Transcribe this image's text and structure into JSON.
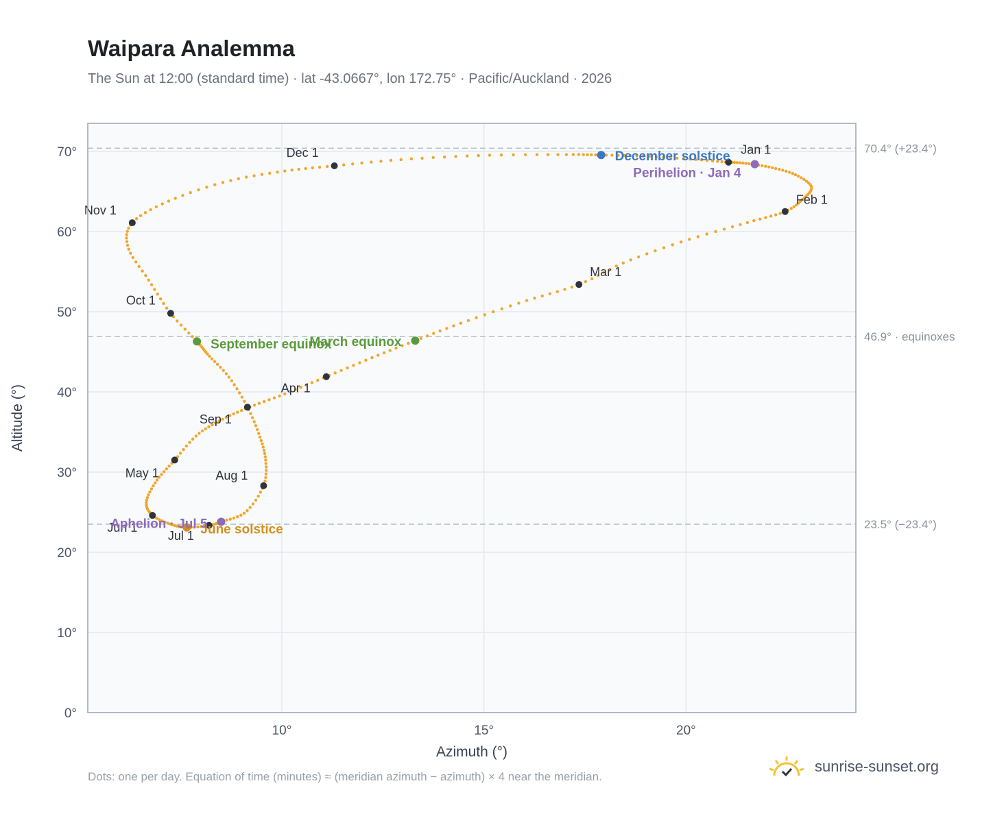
{
  "header": {
    "title": "Waipara Analemma",
    "subtitle": "The Sun at 12:00 (standard time) · lat -43.0667°, lon 172.75° · Pacific/Auckland · 2026"
  },
  "chart_data": {
    "type": "scatter",
    "title": "Waipara Analemma",
    "xlabel": "Azimuth (°)",
    "ylabel": "Altitude (°)",
    "xlim": [
      5.2,
      24.2
    ],
    "ylim": [
      0,
      73.5
    ],
    "x_ticks": [
      {
        "value": 10,
        "label": "10°"
      },
      {
        "value": 15,
        "label": "15°"
      },
      {
        "value": 20,
        "label": "20°"
      }
    ],
    "y_ticks": [
      {
        "value": 0,
        "label": "0°"
      },
      {
        "value": 10,
        "label": "10°"
      },
      {
        "value": 20,
        "label": "20°"
      },
      {
        "value": 30,
        "label": "30°"
      },
      {
        "value": 40,
        "label": "40°"
      },
      {
        "value": 50,
        "label": "50°"
      },
      {
        "value": 60,
        "label": "60°"
      },
      {
        "value": 70,
        "label": "70°"
      }
    ],
    "grid": true,
    "reference_lines": [
      {
        "y": 70.4,
        "label": "70.4° (+23.4°)"
      },
      {
        "y": 46.9,
        "label": "46.9° · equinoxes"
      },
      {
        "y": 23.5,
        "label": "23.5° (−23.4°)"
      }
    ],
    "path_points": [
      {
        "x": 21.05,
        "y": 68.65
      },
      {
        "x": 21.5,
        "y": 68.5
      },
      {
        "x": 22.1,
        "y": 68.0
      },
      {
        "x": 22.7,
        "y": 67.1
      },
      {
        "x": 23.1,
        "y": 65.6
      },
      {
        "x": 22.9,
        "y": 64.1
      },
      {
        "x": 22.45,
        "y": 62.5
      },
      {
        "x": 21.5,
        "y": 61.1
      },
      {
        "x": 20.0,
        "y": 58.9
      },
      {
        "x": 18.5,
        "y": 56.2
      },
      {
        "x": 17.35,
        "y": 53.4
      },
      {
        "x": 16.0,
        "y": 51.3
      },
      {
        "x": 14.5,
        "y": 48.7
      },
      {
        "x": 13.3,
        "y": 46.4
      },
      {
        "x": 12.2,
        "y": 44.2
      },
      {
        "x": 11.1,
        "y": 41.9
      },
      {
        "x": 10.1,
        "y": 39.8
      },
      {
        "x": 9.2,
        "y": 38.1
      },
      {
        "x": 8.5,
        "y": 36.5
      },
      {
        "x": 7.9,
        "y": 34.6
      },
      {
        "x": 7.35,
        "y": 31.5
      },
      {
        "x": 6.9,
        "y": 28.9
      },
      {
        "x": 6.65,
        "y": 26.3
      },
      {
        "x": 6.8,
        "y": 24.6
      },
      {
        "x": 7.25,
        "y": 23.5
      },
      {
        "x": 7.65,
        "y": 23.1
      },
      {
        "x": 8.2,
        "y": 23.35
      },
      {
        "x": 8.5,
        "y": 23.8
      },
      {
        "x": 9.1,
        "y": 25.0
      },
      {
        "x": 9.55,
        "y": 28.3
      },
      {
        "x": 9.6,
        "y": 31.5
      },
      {
        "x": 9.45,
        "y": 34.5
      },
      {
        "x": 9.15,
        "y": 38.1
      },
      {
        "x": 8.7,
        "y": 41.8
      },
      {
        "x": 8.2,
        "y": 44.5
      },
      {
        "x": 7.9,
        "y": 46.3
      },
      {
        "x": 7.25,
        "y": 49.8
      },
      {
        "x": 6.7,
        "y": 54.0
      },
      {
        "x": 6.2,
        "y": 58.0
      },
      {
        "x": 6.3,
        "y": 61.1
      },
      {
        "x": 7.2,
        "y": 63.8
      },
      {
        "x": 8.6,
        "y": 66.2
      },
      {
        "x": 10.0,
        "y": 67.5
      },
      {
        "x": 11.3,
        "y": 68.2
      },
      {
        "x": 13.0,
        "y": 69.0
      },
      {
        "x": 15.0,
        "y": 69.5
      },
      {
        "x": 17.0,
        "y": 69.6
      },
      {
        "x": 17.9,
        "y": 69.55
      },
      {
        "x": 19.0,
        "y": 69.4
      },
      {
        "x": 20.2,
        "y": 69.0
      },
      {
        "x": 21.05,
        "y": 68.65
      }
    ],
    "month_points": [
      {
        "label": "Jan 1",
        "x": 21.05,
        "y": 68.65
      },
      {
        "label": "Feb 1",
        "x": 22.45,
        "y": 62.5
      },
      {
        "label": "Mar 1",
        "x": 17.35,
        "y": 53.4
      },
      {
        "label": "Apr 1",
        "x": 11.1,
        "y": 41.9
      },
      {
        "label": "May 1",
        "x": 7.35,
        "y": 31.5
      },
      {
        "label": "Jun 1",
        "x": 6.8,
        "y": 24.6
      },
      {
        "label": "Jul 1",
        "x": 8.2,
        "y": 23.35
      },
      {
        "label": "Aug 1",
        "x": 9.55,
        "y": 28.3
      },
      {
        "label": "Sep 1",
        "x": 9.15,
        "y": 38.1
      },
      {
        "label": "Oct 1",
        "x": 7.25,
        "y": 49.8
      },
      {
        "label": "Nov 1",
        "x": 6.3,
        "y": 61.1
      },
      {
        "label": "Dec 1",
        "x": 11.3,
        "y": 68.2
      }
    ],
    "events": [
      {
        "label": "December solstice",
        "x": 17.9,
        "y": 69.55,
        "color": "#3b78c4"
      },
      {
        "label": "Perihelion · Jan 4",
        "x": 21.7,
        "y": 68.4,
        "color": "#8e6bb8"
      },
      {
        "label": "March equinox",
        "x": 13.3,
        "y": 46.4,
        "color": "#5a9a3c"
      },
      {
        "label": "September equinox",
        "x": 7.9,
        "y": 46.3,
        "color": "#5a9a3c"
      },
      {
        "label": "June solstice",
        "x": 7.65,
        "y": 23.1,
        "color": "#d48f1b"
      },
      {
        "label": "Aphelion · Jul 5",
        "x": 8.5,
        "y": 23.8,
        "color": "#8e6bb8"
      }
    ],
    "colors": {
      "path": "#f2a62a",
      "month_marker": "#2f343c",
      "grid": "#e3e8ef",
      "plot_bg": "#f8fafc",
      "frame": "#9aa4b2",
      "ref_line": "#b8c2cc"
    }
  },
  "footer": {
    "note": "Dots: one per day. Equation of time (minutes) ≈ (meridian azimuth − azimuth) × 4 near the meridian.",
    "brand": "sunrise-sunset.org",
    "brand_icon": "sun-icon"
  }
}
